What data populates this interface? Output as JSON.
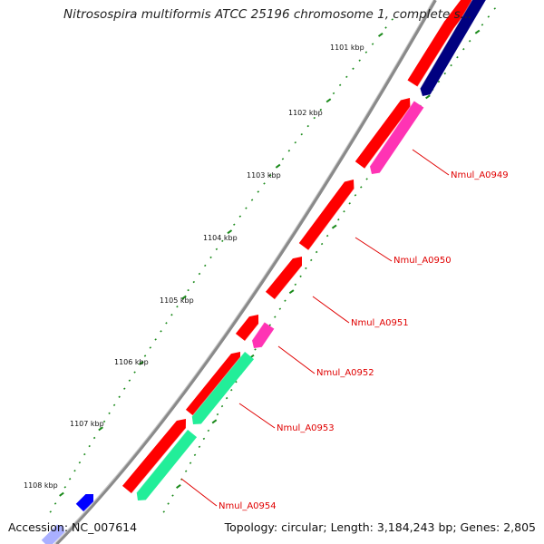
{
  "title": "Nitrosospira multiformis ATCC 25196 chromosome 1, complete s...",
  "accession": "Accession: NC_007614",
  "summary": "Topology: circular; Length: 3,184,243 bp; Genes: 2,805",
  "kbp_labels": [
    "1101 kbp",
    "1102 kbp",
    "1103 kbp",
    "1104 kbp",
    "1105 kbp",
    "1106 kbp",
    "1107 kbp",
    "1108 kbp"
  ],
  "gene_labels": [
    "Nmul_A0949",
    "Nmul_A0950",
    "Nmul_A0951",
    "Nmul_A0952",
    "Nmul_A0953",
    "Nmul_A0954"
  ],
  "colors": {
    "forward_cds": "#ff0000",
    "reverse_cds_dark": "#000080",
    "reverse_pink": "#ff33b4",
    "reverse_green": "#22ee99",
    "backbone": "#8a8a8a",
    "tick": "#1a8a1a",
    "label": "#e00000",
    "blue_feature": "#0000ff"
  }
}
